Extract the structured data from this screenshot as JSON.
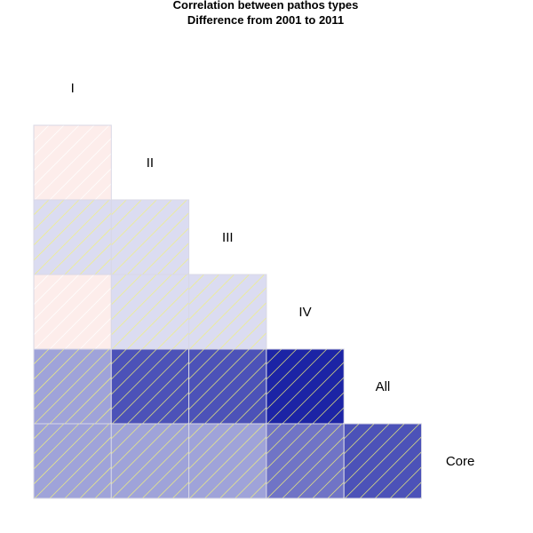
{
  "chart_data": {
    "type": "heatmap",
    "title": "Correlation between pathos types",
    "subtitle": "Difference from 2001 to 2011",
    "variables": [
      "I",
      "II",
      "III",
      "IV",
      "All",
      "Core"
    ],
    "lower_triangle": [
      [
        0.1
      ],
      [
        -0.15,
        -0.15
      ],
      [
        0.1,
        -0.15,
        -0.15
      ],
      [
        -0.4,
        -0.75,
        -0.75,
        -0.95
      ],
      [
        -0.4,
        -0.4,
        -0.4,
        -0.6,
        -0.75
      ]
    ],
    "color_scale": {
      "negative": "#1018a0",
      "positive": "#e84a3a",
      "neutral": "#ffffff"
    },
    "cell_border": "#d8d8e6",
    "hatch": {
      "negative_color": "#f2f27a",
      "positive_color": "#ffffff"
    }
  }
}
